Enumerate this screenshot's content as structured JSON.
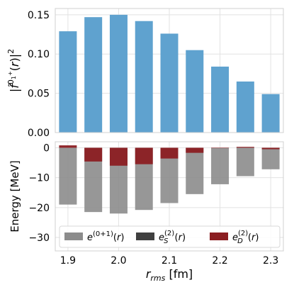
{
  "chart_data": [
    {
      "type": "bar",
      "panel": "top",
      "x": [
        1.9,
        1.95,
        2.0,
        2.05,
        2.1,
        2.15,
        2.2,
        2.25,
        2.3
      ],
      "values": [
        0.129,
        0.147,
        0.15,
        0.142,
        0.126,
        0.105,
        0.084,
        0.065,
        0.049
      ],
      "ylim": [
        0.0,
        0.158
      ],
      "yticks": [
        0.0,
        0.05,
        0.1,
        0.15
      ],
      "ytick_labels": [
        "0.00",
        "0.05",
        "0.10",
        "0.15"
      ],
      "ylabel": "|f̃^{0_1^+}(r)|^2",
      "grid": true,
      "color": "#5fa2cf"
    },
    {
      "type": "bar",
      "panel": "bottom",
      "x": [
        1.9,
        1.95,
        2.0,
        2.05,
        2.1,
        2.15,
        2.2,
        2.25,
        2.3
      ],
      "xticks": [
        1.9,
        2.0,
        2.1,
        2.2,
        2.3
      ],
      "xtick_labels": [
        "1.9",
        "2.0",
        "2.1",
        "2.2",
        "2.3"
      ],
      "xlabel": "r_rms [fm]",
      "ylabel": "Energy [MeV]",
      "ylim": [
        -34.5,
        2.0
      ],
      "yticks": [
        0,
        -10,
        -20,
        -30
      ],
      "ytick_labels": [
        "0",
        "−10",
        "−20",
        "−30"
      ],
      "grid": true,
      "legend_placement": "bottom",
      "series": [
        {
          "name": "e^{(0+1)}(r)",
          "color": "#8c8c8c",
          "values": [
            -19.0,
            -21.5,
            -22.0,
            -20.8,
            -18.5,
            -15.5,
            -12.2,
            -9.5,
            -7.2
          ]
        },
        {
          "name": "e_S^{(2)}(r)",
          "color": "#404040",
          "values": [
            0,
            0,
            0,
            0,
            0,
            0,
            0,
            0,
            0
          ]
        },
        {
          "name": "e_D^{(2)}(r)",
          "color": "#8b1e22",
          "values": [
            0.8,
            -4.6,
            -6.0,
            -5.5,
            -3.6,
            -1.7,
            0,
            0.3,
            -0.5
          ]
        }
      ]
    }
  ]
}
